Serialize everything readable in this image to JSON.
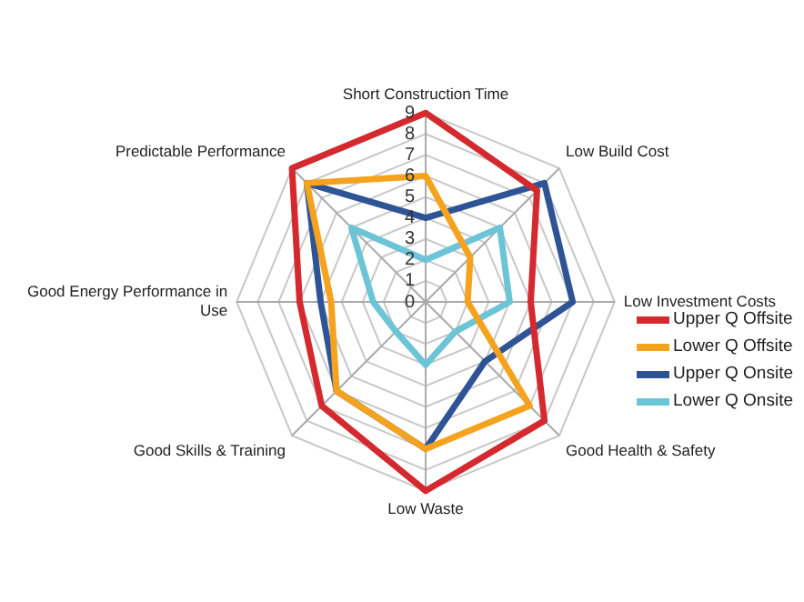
{
  "chart_data": {
    "type": "radar",
    "categories": [
      "Short Construction Time",
      "Low Build Cost",
      "Low Investment Costs",
      "Good Health & Safety",
      "Low Waste",
      "Good Skills & Training",
      "Good Energy Performance in Use",
      "Predictable Performance"
    ],
    "series": [
      {
        "name": "Upper Q Offsite",
        "color": "#d42a2f",
        "values": [
          9,
          7.5,
          5,
          8,
          9,
          7,
          6,
          9
        ]
      },
      {
        "name": "Lower Q Offsite",
        "color": "#f5a21f",
        "values": [
          6,
          3,
          2,
          7,
          7,
          6,
          4.5,
          8
        ]
      },
      {
        "name": "Upper Q Onsite",
        "color": "#2f5495",
        "values": [
          4,
          8,
          7,
          4,
          7,
          6,
          5,
          8
        ]
      },
      {
        "name": "Lower Q Onsite",
        "color": "#6cc5d6",
        "values": [
          2,
          5,
          4,
          2,
          3,
          2,
          2.5,
          5
        ]
      }
    ],
    "ylim": [
      0,
      9
    ],
    "yticks": [
      0,
      1,
      2,
      3,
      4,
      5,
      6,
      7,
      8,
      9
    ],
    "grid": true,
    "legend": "right",
    "marker": "none",
    "line_style": "solid"
  }
}
